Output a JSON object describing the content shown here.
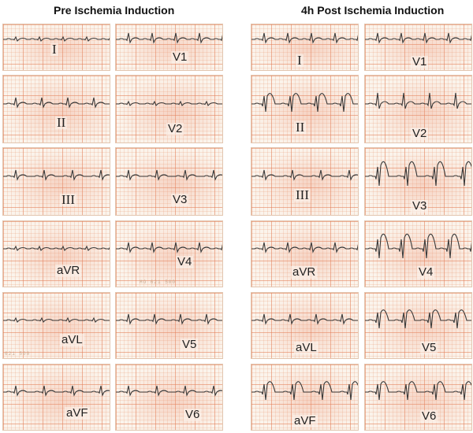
{
  "figure": {
    "left_title": "Pre Ischemia Induction",
    "right_title": "4h Post Ischemia Induction",
    "pre": {
      "col_a": [
        "I",
        "II",
        "III",
        "aVR",
        "aVL",
        "aVF"
      ],
      "col_b": [
        "V1",
        "V2",
        "V3",
        "V4",
        "V5",
        "V6"
      ]
    },
    "post": {
      "col_a": [
        "I",
        "II",
        "III",
        "aVR",
        "aVL",
        "aVF"
      ],
      "col_b": [
        "V1",
        "V2",
        "V3",
        "V4",
        "V5",
        "V6"
      ]
    },
    "stamps": [
      "MO 621 500",
      "621 500"
    ]
  }
}
